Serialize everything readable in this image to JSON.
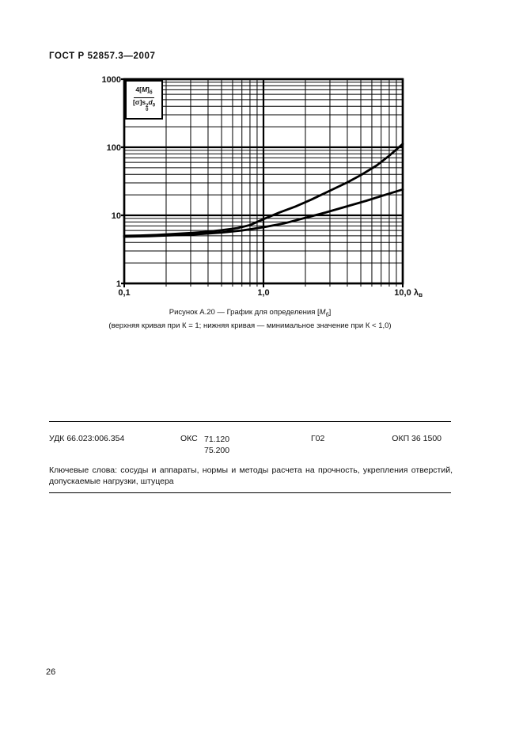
{
  "page": {
    "header": "ГОСТ Р 52857.3—2007",
    "page_number": "26"
  },
  "figure": {
    "caption_line1": {
      "pre": "Рисунок А.20 — График для определения [",
      "var": "M",
      "sub": "б",
      "close": "]"
    },
    "caption_line2": "(верхняя кривая при К = 1; нижняя кривая — минимальное значение при К < 1,0)",
    "formula": {
      "num_pre": "4[",
      "num_var": "M",
      "num_close": "]",
      "num_sub": "б",
      "den_pre": "[σ]s",
      "den_sup": "2",
      "den_sub0": "0",
      "den_d": "d",
      "den_dsub": "0"
    }
  },
  "chart_data": {
    "type": "line",
    "title": "График для определения [Mб]",
    "x_scale": "log",
    "y_scale": "log",
    "xlim": [
      0.1,
      10
    ],
    "ylim": [
      1,
      1000
    ],
    "grid": "log minor gridlines both axes",
    "legend_position": "none (curves explained in caption)",
    "x_ticks": [
      {
        "value": 0.1,
        "label": "0,1"
      },
      {
        "value": 1,
        "label": "1,0"
      },
      {
        "value": 10,
        "label": "10,0"
      }
    ],
    "y_ticks": [
      {
        "value": 1,
        "label": "1"
      },
      {
        "value": 10,
        "label": "10"
      },
      {
        "value": 100,
        "label": "100"
      },
      {
        "value": 1000,
        "label": "1000"
      }
    ],
    "x_axis_suffix": "λ",
    "x_axis_suffix_sub": "в",
    "ylabel": "4[M]б / ([σ]s0²d0)",
    "series": [
      {
        "name": "верхняя кривая при К = 1",
        "x": [
          0.1,
          0.13,
          0.17,
          0.22,
          0.3,
          0.4,
          0.5,
          0.65,
          0.8,
          1.0,
          1.3,
          1.7,
          2.2,
          3.0,
          4.0,
          5.0,
          6.5,
          8.0,
          10.0
        ],
        "y": [
          5.0,
          5.05,
          5.15,
          5.3,
          5.5,
          5.75,
          6.05,
          6.5,
          7.2,
          8.8,
          11.0,
          13.5,
          17.0,
          23.0,
          30.5,
          39.0,
          54.0,
          75.0,
          112.0
        ]
      },
      {
        "name": "нижняя кривая — минимальное значение при К < 1,0",
        "x": [
          0.1,
          0.15,
          0.2,
          0.3,
          0.4,
          0.5,
          0.7,
          1.0,
          1.4,
          2.0,
          2.8,
          4.0,
          5.5,
          7.5,
          10.0
        ],
        "y": [
          4.85,
          4.95,
          5.05,
          5.2,
          5.4,
          5.6,
          6.0,
          6.7,
          7.6,
          9.2,
          11.0,
          13.6,
          16.4,
          20.0,
          24.0
        ]
      }
    ]
  },
  "codes": {
    "udk": "УДК 66.023:006.354",
    "oks_label": "ОКС",
    "oks_line1": "71.120",
    "oks_line2": "75.200",
    "g": "Г02",
    "okp": "ОКП 36 1500"
  },
  "keywords": "Ключевые слова: сосуды и аппараты, нормы и методы расчета на прочность, укрепления отверстий, допускаемые нагрузки, штуцера"
}
